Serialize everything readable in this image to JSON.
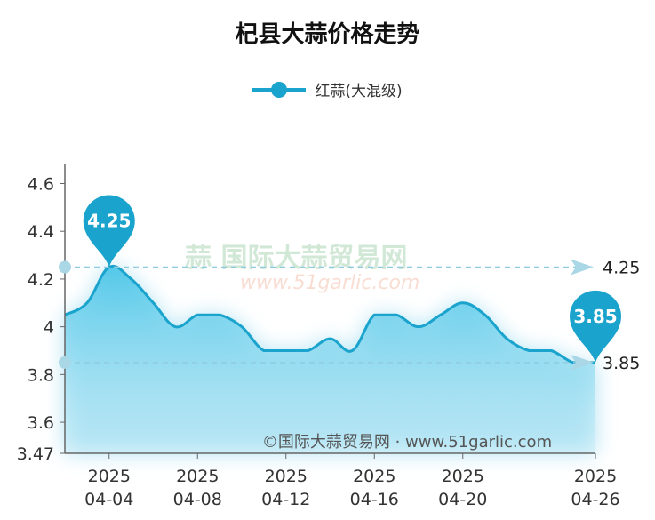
{
  "chart_data": {
    "type": "area",
    "title": "杞县大蒜价格走势",
    "legend": {
      "entries": [
        "红蒜(大混级)"
      ],
      "placement": "top"
    },
    "series": [
      {
        "name": "红蒜(大混级)",
        "color": "#1aa3cc",
        "x": [
          "04-02",
          "04-03",
          "04-04",
          "04-05",
          "04-06",
          "04-07",
          "04-08",
          "04-09",
          "04-10",
          "04-11",
          "04-12",
          "04-13",
          "04-14",
          "04-15",
          "04-16",
          "04-17",
          "04-18",
          "04-19",
          "04-20",
          "04-21",
          "04-22",
          "04-23",
          "04-24",
          "04-25",
          "04-26"
        ],
        "values": [
          4.05,
          4.1,
          4.25,
          4.2,
          4.1,
          4.0,
          4.05,
          4.05,
          4.0,
          3.9,
          3.9,
          3.9,
          3.95,
          3.9,
          4.05,
          4.05,
          4.0,
          4.05,
          4.1,
          4.05,
          3.95,
          3.9,
          3.9,
          3.85,
          3.85
        ]
      }
    ],
    "x_ticks": [
      {
        "x": "04-04",
        "year": "2025",
        "label": "04-04"
      },
      {
        "x": "04-08",
        "year": "2025",
        "label": "04-08"
      },
      {
        "x": "04-12",
        "year": "2025",
        "label": "04-12"
      },
      {
        "x": "04-16",
        "year": "2025",
        "label": "04-16"
      },
      {
        "x": "04-20",
        "year": "2025",
        "label": "04-20"
      },
      {
        "x": "04-26",
        "year": "2025",
        "label": "04-26"
      }
    ],
    "y_ticks": [
      "3.47",
      "3.6",
      "3.8",
      "4",
      "4.2",
      "4.4",
      "4.6"
    ],
    "ylim": [
      3.47,
      4.68
    ],
    "markers": [
      {
        "x": "04-04",
        "label": "4.25"
      },
      {
        "x": "04-26",
        "label": "3.85"
      }
    ],
    "mark_lines": [
      {
        "value": 4.25,
        "label": "4.25"
      },
      {
        "value": 3.85,
        "label": "3.85"
      }
    ],
    "watermark": "国际大蒜贸易网 www.51garlic.com",
    "footer": "©国际大蒜贸易网 · www.51garlic.com",
    "grid": false
  }
}
